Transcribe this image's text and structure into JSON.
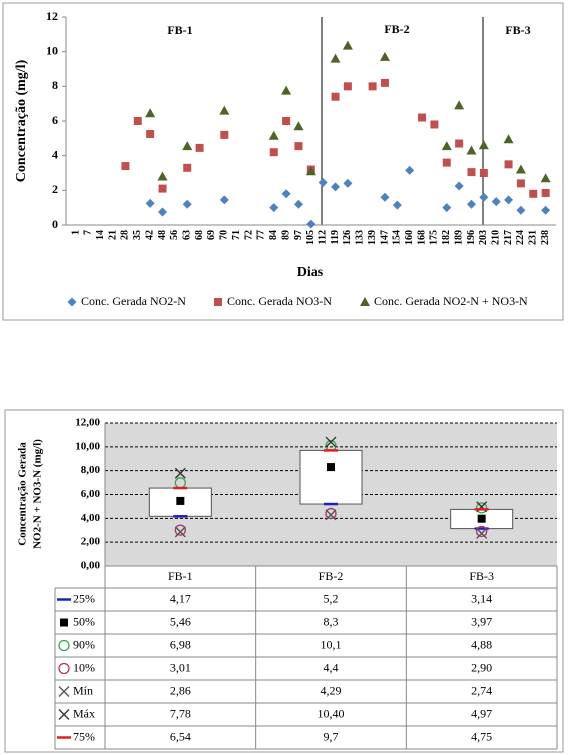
{
  "chart_data": [
    {
      "type": "scatter",
      "annotations": [
        "FB-1",
        "FB-2",
        "FB-3"
      ],
      "x_label": "Dias",
      "y_label": "Concentração (mg/l)",
      "categories": [
        "1",
        "7",
        "14",
        "21",
        "28",
        "35",
        "42",
        "48",
        "56",
        "63",
        "68",
        "69",
        "70",
        "71",
        "72",
        "77",
        "84",
        "89",
        "97",
        "105",
        "112",
        "119",
        "126",
        "133",
        "139",
        "147",
        "154",
        "160",
        "168",
        "175",
        "182",
        "189",
        "196",
        "203",
        "210",
        "217",
        "224",
        "231",
        "238"
      ],
      "ylim": [
        0,
        12
      ],
      "yticks": [
        0,
        2,
        4,
        6,
        8,
        10,
        12
      ],
      "series": [
        {
          "name": "Conc. Gerada NO2-N",
          "color": "#4f81bd",
          "marker": "diamond",
          "values": [
            null,
            null,
            null,
            null,
            null,
            null,
            1.25,
            0.75,
            null,
            1.2,
            null,
            null,
            1.45,
            null,
            null,
            null,
            1.0,
            1.8,
            1.2,
            0.05,
            2.45,
            2.2,
            2.4,
            null,
            null,
            1.6,
            1.15,
            3.15,
            null,
            null,
            1.0,
            2.25,
            1.2,
            1.6,
            1.35,
            1.45,
            0.85,
            null,
            0.85
          ]
        },
        {
          "name": "Conc. Gerada NO3-N",
          "color": "#c0504d",
          "marker": "square",
          "values": [
            null,
            null,
            null,
            null,
            3.4,
            6.0,
            5.25,
            2.1,
            null,
            3.3,
            4.45,
            null,
            5.2,
            null,
            null,
            null,
            4.2,
            6.0,
            4.55,
            3.2,
            null,
            7.4,
            8.0,
            null,
            8.0,
            8.2,
            null,
            null,
            6.2,
            5.8,
            3.6,
            4.7,
            3.05,
            3.0,
            null,
            3.5,
            2.4,
            1.8,
            1.85
          ]
        },
        {
          "name": "Conc. Gerada NO2-N + NO3-N",
          "color": "#4f6228",
          "marker": "triangle",
          "values": [
            null,
            null,
            null,
            null,
            null,
            null,
            6.45,
            2.8,
            null,
            4.55,
            null,
            null,
            6.6,
            null,
            null,
            null,
            5.15,
            7.75,
            5.7,
            3.1,
            null,
            9.6,
            10.35,
            null,
            null,
            9.7,
            null,
            null,
            null,
            null,
            4.55,
            6.9,
            4.3,
            4.6,
            null,
            4.95,
            3.2,
            null,
            2.7
          ]
        }
      ]
    },
    {
      "type": "box",
      "y_label": [
        "Concentração Gerada",
        "NO2-N + NO3-N (mg/l)"
      ],
      "categories": [
        "FB-1",
        "FB-2",
        "FB-3"
      ],
      "ylim": [
        0,
        12
      ],
      "yticks": [
        {
          "value": 0,
          "label": "0,00"
        },
        {
          "value": 2,
          "label": "2,00"
        },
        {
          "value": 4,
          "label": "4,00"
        },
        {
          "value": 6,
          "label": "6,00"
        },
        {
          "value": 8,
          "label": "8,00"
        },
        {
          "value": 10,
          "label": "10,00"
        },
        {
          "value": 12,
          "label": "12,00"
        }
      ],
      "grid": true,
      "series": [
        {
          "name": "25%",
          "color": "#1f1fbf",
          "marker": "dash",
          "values": [
            4.17,
            5.2,
            3.14
          ],
          "value_labels": [
            "4,17",
            "5,2",
            "3,14"
          ]
        },
        {
          "name": "50%",
          "color": "#000000",
          "marker": "square",
          "values": [
            5.46,
            8.3,
            3.97
          ],
          "value_labels": [
            "5,46",
            "8,3",
            "3,97"
          ]
        },
        {
          "name": "90%",
          "color": "#33a853",
          "marker": "circle",
          "values": [
            6.98,
            10.1,
            4.88
          ],
          "value_labels": [
            "6,98",
            "10,1",
            "4,88"
          ]
        },
        {
          "name": "10%",
          "color": "#b0306f",
          "marker": "circle",
          "values": [
            3.01,
            4.4,
            2.9
          ],
          "value_labels": [
            "3,01",
            "4,4",
            "2,90"
          ]
        },
        {
          "name": "Mín",
          "color": "#555555",
          "marker": "x",
          "values": [
            2.86,
            4.29,
            2.74
          ],
          "value_labels": [
            "2,86",
            "4,29",
            "2,74"
          ]
        },
        {
          "name": "Máx",
          "color": "#333333",
          "marker": "x",
          "values": [
            7.78,
            10.4,
            4.97
          ],
          "value_labels": [
            "7,78",
            "10,40",
            "4,97"
          ]
        },
        {
          "name": "75%",
          "color": "#e02020",
          "marker": "dash",
          "values": [
            6.54,
            9.7,
            4.75
          ],
          "value_labels": [
            "6,54",
            "9,7",
            "4,75"
          ]
        }
      ]
    }
  ]
}
